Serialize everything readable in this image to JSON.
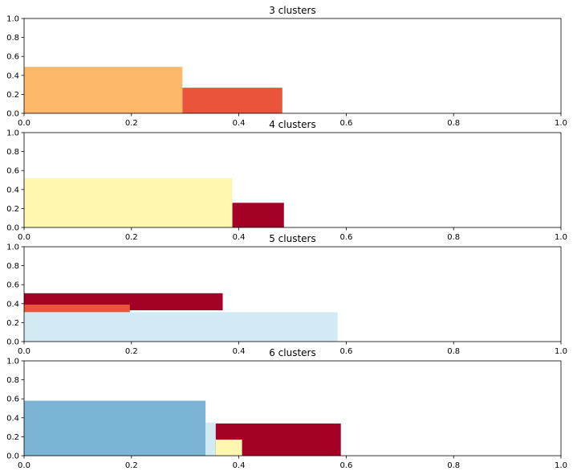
{
  "chart_data": [
    {
      "type": "bar",
      "title": "3 clusters",
      "xlim": [
        0,
        1
      ],
      "ylim": [
        0,
        1
      ],
      "xticks": [
        "0.0",
        "0.2",
        "0.4",
        "0.6",
        "0.8",
        "1.0"
      ],
      "yticks": [
        "0.0",
        "0.2",
        "0.4",
        "0.6",
        "0.8",
        "1.0"
      ],
      "bars": [
        {
          "x0": 0.0,
          "x1": 0.295,
          "y0": 0.0,
          "y1": 0.49,
          "color": "#fdb86a"
        },
        {
          "x0": 0.295,
          "x1": 0.481,
          "y0": 0.0,
          "y1": 0.27,
          "color": "#e8553a"
        }
      ]
    },
    {
      "type": "bar",
      "title": "4 clusters",
      "xlim": [
        0,
        1
      ],
      "ylim": [
        0,
        1
      ],
      "xticks": [
        "0.0",
        "0.2",
        "0.4",
        "0.6",
        "0.8",
        "1.0"
      ],
      "yticks": [
        "0.0",
        "0.2",
        "0.4",
        "0.6",
        "0.8",
        "1.0"
      ],
      "bars": [
        {
          "x0": 0.0,
          "x1": 0.388,
          "y0": 0.0,
          "y1": 0.52,
          "color": "#fff6b0"
        },
        {
          "x0": 0.388,
          "x1": 0.484,
          "y0": 0.0,
          "y1": 0.26,
          "color": "#a50026"
        }
      ]
    },
    {
      "type": "bar",
      "title": "5 clusters",
      "xlim": [
        0,
        1
      ],
      "ylim": [
        0,
        1
      ],
      "xticks": [
        "0.0",
        "0.2",
        "0.4",
        "0.6",
        "0.8",
        "1.0"
      ],
      "yticks": [
        "0.0",
        "0.2",
        "0.4",
        "0.6",
        "0.8",
        "1.0"
      ],
      "bars": [
        {
          "x0": 0.0,
          "x1": 0.37,
          "y0": 0.33,
          "y1": 0.51,
          "color": "#a50026"
        },
        {
          "x0": 0.0,
          "x1": 0.197,
          "y0": 0.31,
          "y1": 0.39,
          "color": "#e8553a"
        },
        {
          "x0": 0.0,
          "x1": 0.584,
          "y0": 0.0,
          "y1": 0.31,
          "color": "#d2eaf4"
        }
      ]
    },
    {
      "type": "bar",
      "title": "6 clusters",
      "xlim": [
        0,
        1
      ],
      "ylim": [
        0,
        1
      ],
      "xticks": [
        "0.0",
        "0.2",
        "0.4",
        "0.6",
        "0.8",
        "1.0"
      ],
      "yticks": [
        "0.0",
        "0.2",
        "0.4",
        "0.6",
        "0.8",
        "1.0"
      ],
      "bars": [
        {
          "x0": 0.0,
          "x1": 0.338,
          "y0": 0.0,
          "y1": 0.58,
          "color": "#7cb4d6"
        },
        {
          "x0": 0.338,
          "x1": 0.357,
          "y0": 0.0,
          "y1": 0.35,
          "color": "#d2eaf4"
        },
        {
          "x0": 0.357,
          "x1": 0.59,
          "y0": 0.0,
          "y1": 0.34,
          "color": "#a50026"
        },
        {
          "x0": 0.357,
          "x1": 0.406,
          "y0": 0.0,
          "y1": 0.17,
          "color": "#fff6b0"
        }
      ]
    }
  ]
}
